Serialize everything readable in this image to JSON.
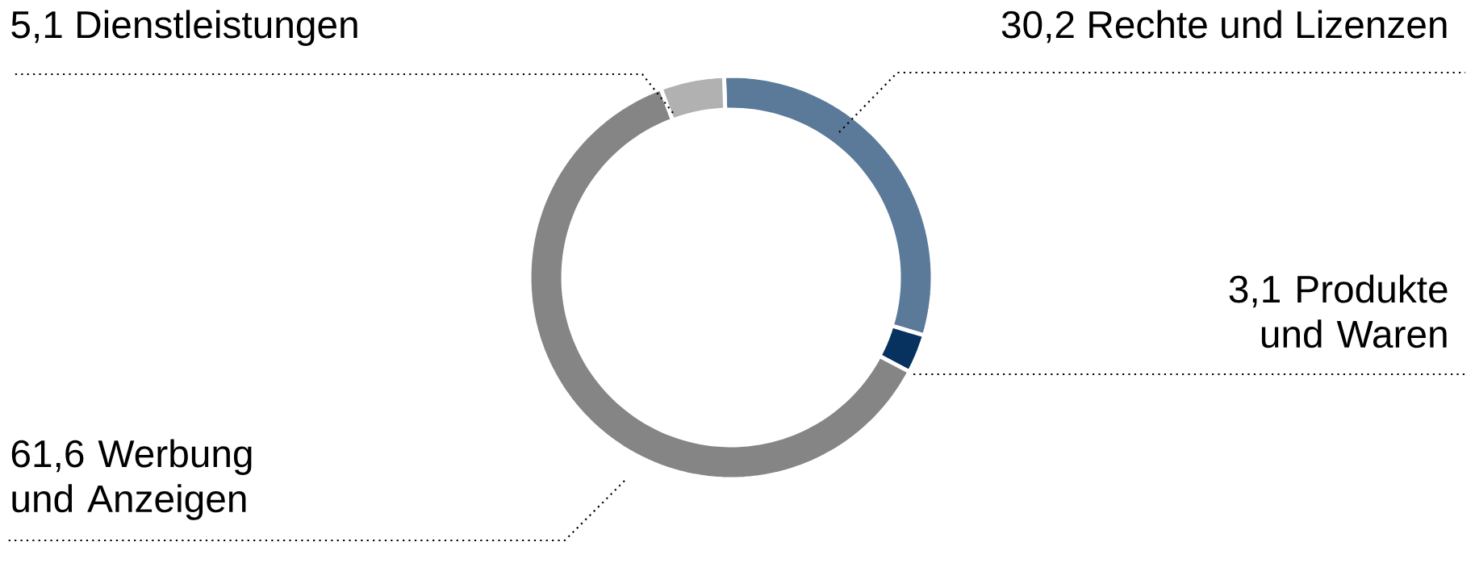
{
  "chart_data": {
    "type": "donut",
    "categories": [
      "Rechte und Lizenzen",
      "Produkte und Waren",
      "Werbung und Anzeigen",
      "Dienstleistungen"
    ],
    "values": [
      30.2,
      3.1,
      61.6,
      5.1
    ],
    "value_labels": [
      "30,2",
      "3,1",
      "61,6",
      "5,1"
    ],
    "colors": [
      "#5b7a99",
      "#07315f",
      "#858585",
      "#b1b1b1"
    ]
  }
}
